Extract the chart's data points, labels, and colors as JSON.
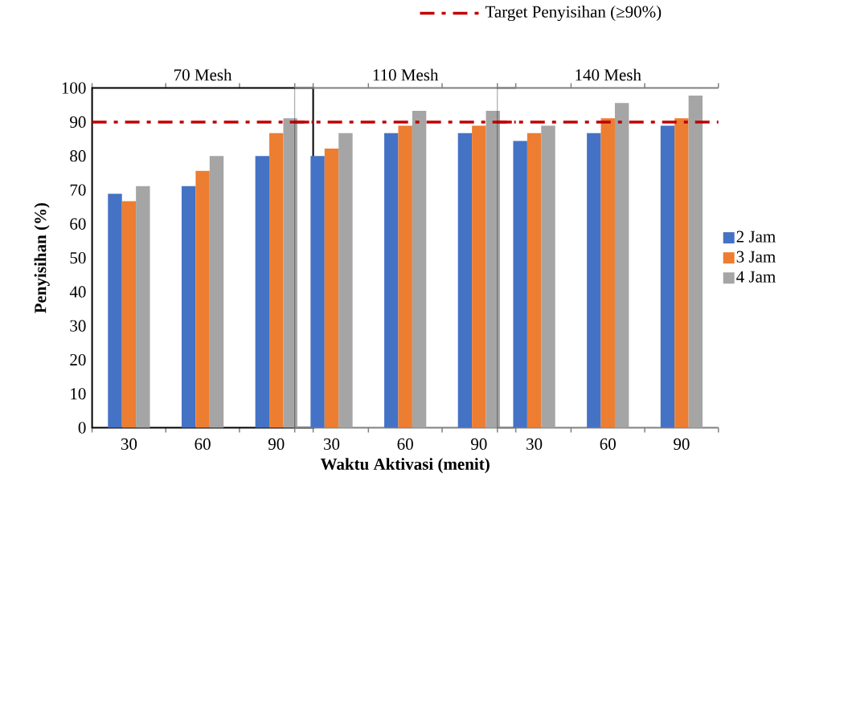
{
  "chart_data": [
    {
      "type": "bar",
      "title": "70 Mesh",
      "ylabel": "Penyisihan (%)",
      "categories": [
        "30",
        "60",
        "90"
      ],
      "series": [
        {
          "color": "#4472c4",
          "values": [
            68.9,
            71.1,
            80.0
          ]
        },
        {
          "color": "#ed7d31",
          "values": [
            66.7,
            75.6,
            86.7
          ]
        },
        {
          "color": "#a5a5a5",
          "values": [
            71.1,
            80.0,
            91.1
          ]
        }
      ],
      "ylim": [
        0,
        100
      ],
      "yticks": [
        0,
        10,
        20,
        30,
        40,
        50,
        60,
        70,
        80,
        90,
        100
      ],
      "ref_lines": [
        {
          "axis": "y",
          "value": 90,
          "color": "#c00000",
          "line_style": "dashdot"
        }
      ]
    },
    {
      "type": "bar",
      "title": "110 Mesh",
      "xlabel": "Waktu Aktivasi (menit)",
      "categories": [
        "30",
        "60",
        "90"
      ],
      "series": [
        {
          "color": "#4472c4",
          "values": [
            80.0,
            86.7,
            86.7
          ]
        },
        {
          "color": "#ed7d31",
          "values": [
            82.2,
            88.9,
            88.9
          ]
        },
        {
          "color": "#a5a5a5",
          "values": [
            86.7,
            93.3,
            93.3
          ]
        }
      ],
      "ylim": [
        0,
        100
      ],
      "yticks": [
        0,
        10,
        20,
        30,
        40,
        50,
        60,
        70,
        80,
        90,
        100
      ],
      "tick_labels": "x",
      "ref_lines": [
        {
          "axis": "y",
          "value": 90,
          "color": "#c00000",
          "line_style": "dashdot"
        }
      ]
    },
    {
      "type": "bar",
      "title": "140 Mesh",
      "categories": [
        "30",
        "60",
        "90"
      ],
      "series": [
        {
          "name": "2 Jam",
          "color": "#4472c4",
          "values": [
            84.4,
            86.7,
            88.9
          ]
        },
        {
          "name": "3 Jam",
          "color": "#ed7d31",
          "values": [
            86.7,
            91.1,
            91.1
          ]
        },
        {
          "name": "4 Jam",
          "color": "#a5a5a5",
          "values": [
            88.9,
            95.6,
            97.8
          ]
        }
      ],
      "ylim": [
        0,
        100
      ],
      "yticks": [
        0,
        10,
        20,
        30,
        40,
        50,
        60,
        70,
        80,
        90,
        100
      ],
      "tick_labels": "x",
      "legend": "right",
      "ref_lines": [
        {
          "axis": "y",
          "value": 90,
          "label": "Target Penyisihan (≥90%)",
          "color": "#c00000",
          "line_style": "dashdot"
        }
      ]
    }
  ]
}
